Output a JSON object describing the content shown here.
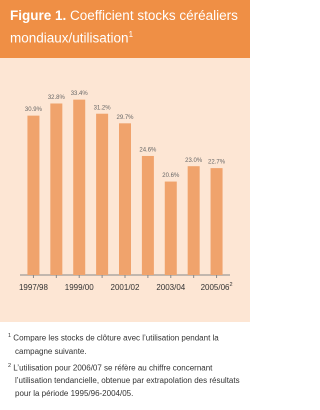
{
  "figure_label": "Figure 1.",
  "chart_data": {
    "type": "bar",
    "title": "Coefficient stocks céréaliers mondiaux/utilisation",
    "title_note": "1",
    "categories": [
      "1997/98",
      null,
      "1999/00",
      null,
      "2001/02",
      null,
      "2003/04",
      null,
      "2005/06"
    ],
    "category_note": "2",
    "values": [
      30.9,
      32.8,
      33.4,
      31.2,
      29.7,
      24.6,
      20.6,
      23.0,
      22.7
    ],
    "value_labels": [
      "30.9%",
      "32.8%",
      "33.4%",
      "31.2%",
      "29.7%",
      "24.6%",
      "20.6%",
      "23.0%",
      "22.7%"
    ],
    "color": "#f0a36c",
    "ylim": [
      6,
      36
    ]
  },
  "notes": [
    {
      "marker": "1",
      "text": "Compare les stocks de clôture avec l’utilisation pendant la campagne suivante."
    },
    {
      "marker": "2",
      "text": "L’utilisation pour 2006/07 se réfère au chiffre concernant l’utilisation tendancielle, obtenue par extrapolation des résultats pour la période 1995/96-2004/05."
    }
  ]
}
